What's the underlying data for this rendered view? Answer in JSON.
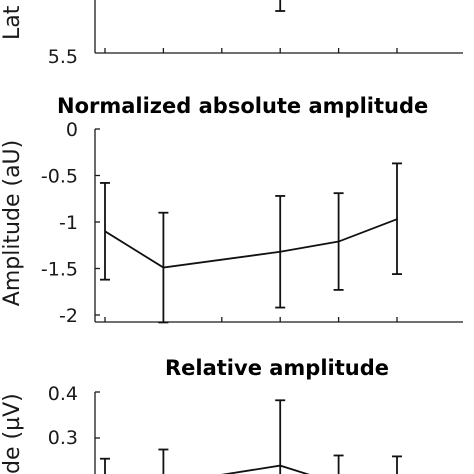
{
  "chart_data": [
    {
      "type": "line",
      "partial": "bottom of panel only",
      "title": "",
      "ylabel": "Lat",
      "ytick_labels": [
        "5.5"
      ],
      "x": [
        1,
        2,
        3,
        4,
        5,
        6
      ],
      "visible_error_bar": {
        "x": 4,
        "lower": 5.95
      }
    },
    {
      "type": "line",
      "title": "Normalized absolute amplitude",
      "ylabel": "Amplitude (aU)",
      "xlabel": "",
      "ylim": [
        -2.05,
        0
      ],
      "ytick_labels": [
        "0",
        "-0.5",
        "-1",
        "-1.5",
        "-2"
      ],
      "x": [
        1,
        2,
        4,
        5,
        6
      ],
      "values": [
        -1.1,
        -1.49,
        -1.32,
        -1.21,
        -0.97
      ],
      "err_low": [
        -1.62,
        -2.08,
        -1.92,
        -1.73,
        -1.56
      ],
      "err_high": [
        -0.58,
        -0.9,
        -0.72,
        -0.69,
        -0.37
      ],
      "xticks": [
        1,
        2,
        3,
        4,
        5,
        6
      ]
    },
    {
      "type": "line",
      "partial": "top of panel only",
      "title": "Relative amplitude",
      "ylabel": "de (µV)",
      "ytick_labels": [
        "0.4",
        "0.3"
      ],
      "x": [
        1,
        2,
        4,
        5,
        6
      ],
      "values": [
        0.2,
        0.2,
        0.24,
        0.2,
        0.2
      ],
      "err_high": [
        0.255,
        0.275,
        0.382,
        0.262,
        0.26
      ]
    }
  ]
}
